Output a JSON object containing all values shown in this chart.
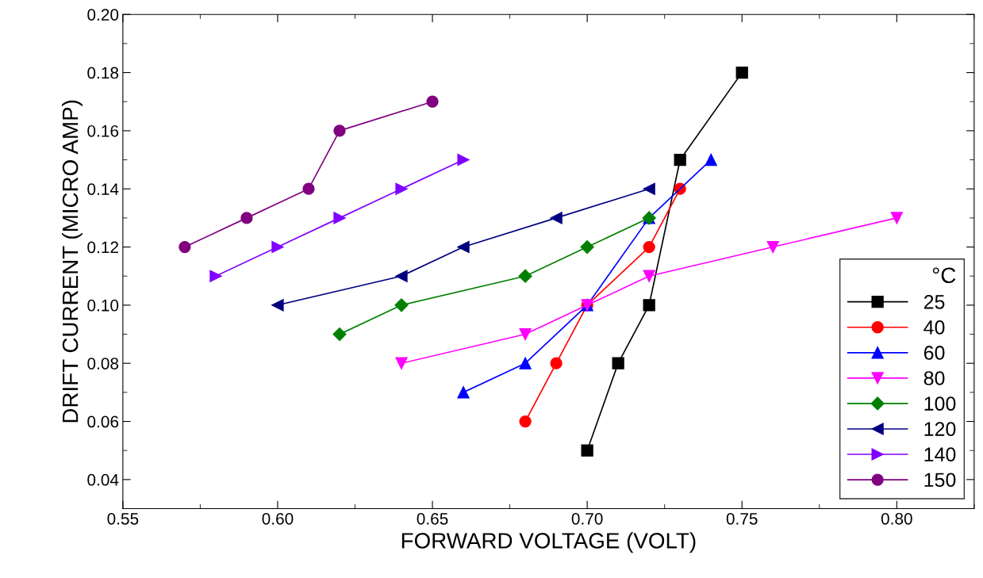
{
  "chart_data": {
    "type": "line",
    "xlabel": "FORWARD VOLTAGE (VOLT)",
    "ylabel": "DRIFT CURRENT (MICRO AMP)",
    "legend_title": "°C",
    "legend": "bottom right",
    "xlim": [
      0.55,
      0.825
    ],
    "ylim": [
      0.03,
      0.2
    ],
    "xticks": [
      {
        "value": 0.55,
        "label": "0.55"
      },
      {
        "value": 0.6,
        "label": "0.60"
      },
      {
        "value": 0.65,
        "label": "0.65"
      },
      {
        "value": 0.7,
        "label": "0.70"
      },
      {
        "value": 0.75,
        "label": "0.75"
      },
      {
        "value": 0.8,
        "label": "0.80"
      }
    ],
    "yticks": [
      {
        "value": 0.04,
        "label": "0.04"
      },
      {
        "value": 0.06,
        "label": "0.06"
      },
      {
        "value": 0.08,
        "label": "0.08"
      },
      {
        "value": 0.1,
        "label": "0.10"
      },
      {
        "value": 0.12,
        "label": "0.12"
      },
      {
        "value": 0.14,
        "label": "0.14"
      },
      {
        "value": 0.16,
        "label": "0.16"
      },
      {
        "value": 0.18,
        "label": "0.18"
      },
      {
        "value": 0.2,
        "label": "0.20"
      }
    ],
    "grid": false,
    "line_style": "solid",
    "series": [
      {
        "name": "25",
        "color": "#000000",
        "marker": "square",
        "x": [
          0.7,
          0.71,
          0.72,
          0.73,
          0.75
        ],
        "values": [
          0.05,
          0.08,
          0.1,
          0.15,
          0.18
        ]
      },
      {
        "name": "40",
        "color": "#ff0000",
        "marker": "circle",
        "x": [
          0.68,
          0.69,
          0.7,
          0.72,
          0.73
        ],
        "values": [
          0.06,
          0.08,
          0.1,
          0.12,
          0.14
        ]
      },
      {
        "name": "60",
        "color": "#0000ff",
        "marker": "triangle",
        "x": [
          0.66,
          0.68,
          0.7,
          0.72,
          0.74
        ],
        "values": [
          0.07,
          0.08,
          0.1,
          0.13,
          0.15
        ]
      },
      {
        "name": "80",
        "color": "#ff00ff",
        "marker": "triangle_down",
        "x": [
          0.64,
          0.68,
          0.7,
          0.72,
          0.76,
          0.8
        ],
        "values": [
          0.08,
          0.09,
          0.1,
          0.11,
          0.12,
          0.13
        ]
      },
      {
        "name": "100",
        "color": "#008000",
        "marker": "diamond",
        "x": [
          0.62,
          0.64,
          0.68,
          0.7,
          0.72
        ],
        "values": [
          0.09,
          0.1,
          0.11,
          0.12,
          0.13
        ]
      },
      {
        "name": "120",
        "color": "#000080",
        "marker": "triangle_left",
        "x": [
          0.6,
          0.64,
          0.66,
          0.69,
          0.72
        ],
        "values": [
          0.1,
          0.11,
          0.12,
          0.13,
          0.14
        ]
      },
      {
        "name": "140",
        "color": "#8000ff",
        "marker": "triangle_right",
        "x": [
          0.58,
          0.6,
          0.62,
          0.64,
          0.66
        ],
        "values": [
          0.11,
          0.12,
          0.13,
          0.14,
          0.15
        ]
      },
      {
        "name": "150",
        "color": "#800080",
        "marker": "circle",
        "x": [
          0.57,
          0.59,
          0.61,
          0.62,
          0.65
        ],
        "values": [
          0.12,
          0.13,
          0.14,
          0.16,
          0.17
        ]
      }
    ]
  }
}
